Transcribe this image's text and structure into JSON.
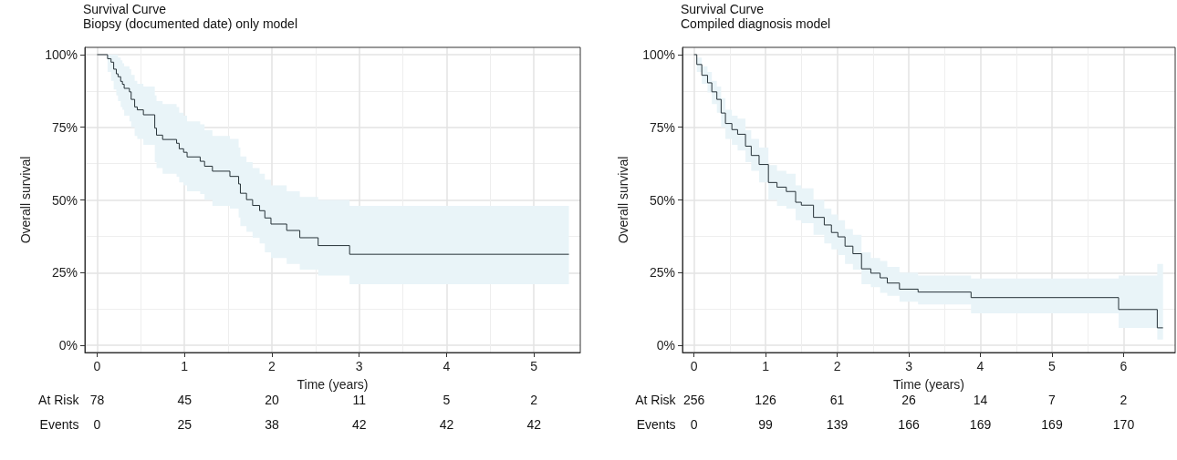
{
  "chart_data": [
    {
      "type": "step",
      "title": "Survival Curve",
      "subtitle": "Biopsy (documented date) only model",
      "xlabel": "Time (years)",
      "ylabel": "Overall survival",
      "xlim": [
        -0.14,
        5.53
      ],
      "xticks": [
        0,
        1,
        2,
        3,
        4,
        5
      ],
      "ylim": [
        -2.5,
        102.5
      ],
      "yticks": [
        {
          "value": 0,
          "label": "0%"
        },
        {
          "value": 25,
          "label": "25%"
        },
        {
          "value": 50,
          "label": "50%"
        },
        {
          "value": 75,
          "label": "75%"
        },
        {
          "value": 100,
          "label": "100%"
        }
      ],
      "grid": true,
      "marker": "none",
      "line_style": "solid",
      "series": [
        {
          "color": "#263238",
          "x": [
            0,
            0.12,
            0.16,
            0.19,
            0.22,
            0.24,
            0.27,
            0.29,
            0.31,
            0.37,
            0.39,
            0.43,
            0.46,
            0.53,
            0.66,
            0.68,
            0.75,
            0.91,
            0.94,
            0.99,
            1.03,
            1.18,
            1.23,
            1.32,
            1.52,
            1.62,
            1.64,
            1.71,
            1.78,
            1.86,
            1.92,
            1.99,
            2.17,
            2.32,
            2.53,
            2.89,
            5.4
          ],
          "values": [
            100,
            98.6,
            97.4,
            95.0,
            93.4,
            92.4,
            90.8,
            89.8,
            88.4,
            87.2,
            84.6,
            82.0,
            81.0,
            79.3,
            74.7,
            72.3,
            70.8,
            69.5,
            67.6,
            66.4,
            64.8,
            63.3,
            61.6,
            59.9,
            58.1,
            55.5,
            52.3,
            50.1,
            48.1,
            46.3,
            43.8,
            41.7,
            39.5,
            37.0,
            34.3,
            31.3,
            31.3
          ],
          "lower": [
            100,
            94,
            91,
            88,
            86,
            84,
            82,
            81,
            79,
            77,
            75,
            72,
            71,
            69,
            63,
            61,
            59,
            58,
            56,
            55,
            53,
            52,
            50,
            48,
            47,
            44,
            41,
            39,
            37,
            35,
            32,
            30,
            28,
            26,
            24,
            21,
            21
          ],
          "upper": [
            100,
            100,
            100,
            100,
            100,
            99,
            98,
            97,
            96,
            95,
            93,
            91,
            90,
            89,
            86,
            84,
            83,
            82,
            80,
            79,
            77,
            76,
            74,
            72,
            71,
            68,
            65,
            63,
            61,
            59,
            57,
            55,
            53,
            51,
            50,
            48,
            48
          ]
        }
      ],
      "annotations": [
        "At Risk",
        "78",
        "45",
        "20",
        "11",
        "5",
        "2",
        "Events",
        "0",
        "25",
        "38",
        "42",
        "42",
        "42"
      ]
    },
    {
      "type": "step",
      "title": "Survival Curve",
      "subtitle": "Compiled diagnosis model",
      "xlabel": "Time (years)",
      "ylabel": "Overall survival",
      "xlim": [
        -0.16,
        6.72
      ],
      "xticks": [
        0,
        1,
        2,
        3,
        4,
        5,
        6
      ],
      "ylim": [
        -2.5,
        102.5
      ],
      "yticks": [
        {
          "value": 0,
          "label": "0%"
        },
        {
          "value": 25,
          "label": "25%"
        },
        {
          "value": 50,
          "label": "50%"
        },
        {
          "value": 75,
          "label": "75%"
        },
        {
          "value": 100,
          "label": "100%"
        }
      ],
      "grid": true,
      "marker": "none",
      "line_style": "solid",
      "series": [
        {
          "color": "#263238",
          "x": [
            0,
            0.04,
            0.11,
            0.19,
            0.25,
            0.32,
            0.38,
            0.44,
            0.53,
            0.61,
            0.72,
            0.8,
            0.91,
            1.04,
            1.16,
            1.29,
            1.42,
            1.5,
            1.67,
            1.82,
            1.92,
            2.01,
            2.11,
            2.22,
            2.34,
            2.47,
            2.6,
            2.7,
            2.87,
            3.13,
            3.87,
            5.93,
            6.47,
            6.55
          ],
          "values": [
            100,
            96.6,
            92.9,
            90.3,
            87.2,
            84.6,
            79.9,
            76.3,
            74.2,
            72.6,
            68.5,
            65.3,
            62.2,
            56.0,
            54.4,
            52.9,
            49.2,
            48.2,
            44.0,
            41.4,
            38.8,
            37.3,
            34.1,
            31.5,
            26.3,
            24.8,
            23.2,
            21.4,
            19.3,
            18.3,
            16.4,
            12.3,
            6.0,
            6.0
          ],
          "lower": [
            100,
            94,
            90,
            87,
            83,
            80,
            75,
            71,
            69,
            67,
            63,
            60,
            56,
            50,
            48,
            47,
            43,
            42,
            38,
            35,
            33,
            31,
            28,
            26,
            21,
            20,
            18,
            17,
            15,
            14,
            11,
            6,
            2,
            2
          ],
          "upper": [
            100,
            99,
            96,
            94,
            91,
            89,
            85,
            81,
            79,
            78,
            74,
            71,
            68,
            62,
            60,
            59,
            55,
            54,
            50,
            47,
            45,
            43,
            40,
            38,
            32,
            30,
            29,
            27,
            25,
            24,
            23,
            24,
            28,
            28
          ]
        }
      ],
      "annotations": [
        "At Risk",
        "256",
        "126",
        "61",
        "26",
        "14",
        "7",
        "2",
        "Events",
        "0",
        "99",
        "139",
        "166",
        "169",
        "169",
        "170"
      ]
    }
  ]
}
